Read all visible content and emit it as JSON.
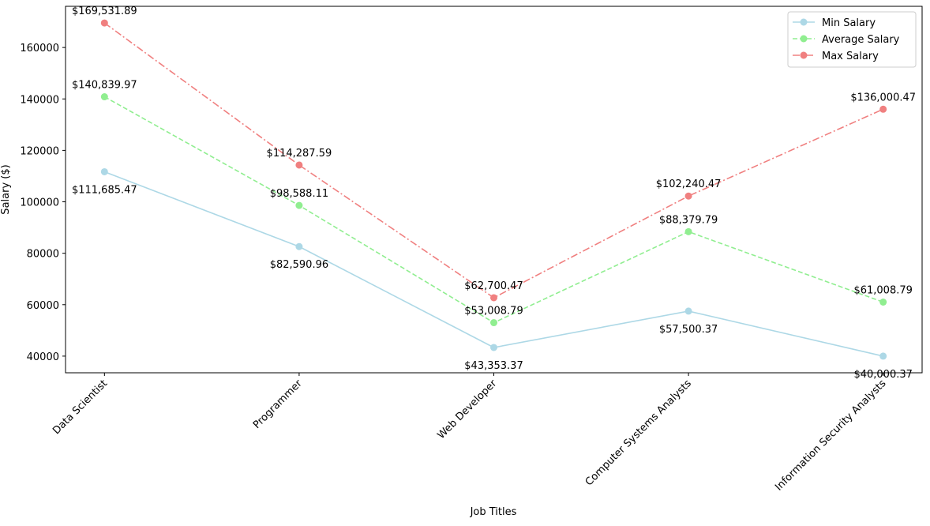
{
  "chart_data": {
    "type": "line",
    "x_label": "Job Titles",
    "y_label": "Salary ($)",
    "categories": [
      "Data Scientist",
      "Programmer",
      "Web Developer",
      "Computer Systems Analysts",
      "Information Security Analysts"
    ],
    "series": [
      {
        "name": "Min Salary",
        "color": "#add8e6",
        "linestyle": "solid",
        "values": [
          111685.47,
          82590.96,
          43353.37,
          57500.37,
          40000.37
        ],
        "value_labels": [
          "$111,685.47",
          "$82,590.96",
          "$43,353.37",
          "$57,500.37",
          "$40,000.37"
        ]
      },
      {
        "name": "Average Salary",
        "color": "#90ee90",
        "linestyle": "dashed",
        "values": [
          140839.97,
          98588.11,
          53008.79,
          88379.79,
          61008.79
        ],
        "value_labels": [
          "$140,839.97",
          "$98,588.11",
          "$53,008.79",
          "$88,379.79",
          "$61,008.79"
        ]
      },
      {
        "name": "Max Salary",
        "color": "#f08080",
        "linestyle": "dashdot",
        "values": [
          169531.89,
          114287.59,
          62700.47,
          102240.47,
          136000.47
        ],
        "value_labels": [
          "$169,531.89",
          "$114,287.59",
          "$62,700.47",
          "$102,240.47",
          "$136,000.47"
        ]
      }
    ],
    "ylim": [
      33523.8,
      176008.5
    ],
    "yticks": [
      40000,
      60000,
      80000,
      100000,
      120000,
      140000,
      160000
    ],
    "legend": "upper right"
  }
}
